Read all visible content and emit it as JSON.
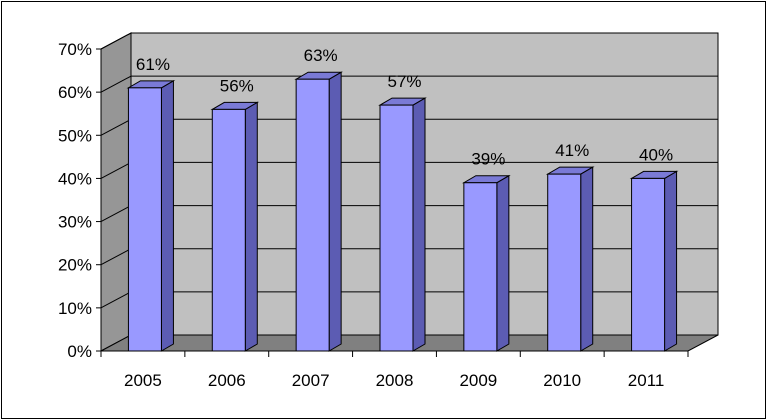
{
  "chart_data": {
    "type": "bar",
    "title": "",
    "xlabel": "",
    "ylabel": "",
    "categories": [
      "2005",
      "2006",
      "2007",
      "2008",
      "2009",
      "2010",
      "2011"
    ],
    "values": [
      61,
      56,
      63,
      57,
      39,
      41,
      40
    ],
    "data_labels": [
      "61%",
      "56%",
      "63%",
      "57%",
      "39%",
      "41%",
      "40%"
    ],
    "ylim": [
      0,
      70
    ],
    "yticks": [
      0,
      10,
      20,
      30,
      40,
      50,
      60,
      70
    ],
    "ytick_labels": [
      "0%",
      "10%",
      "20%",
      "30%",
      "40%",
      "50%",
      "60%",
      "70%"
    ],
    "grid": true,
    "legend": "none",
    "style": "3d-column",
    "colors": {
      "bar_front": "#9999ff",
      "bar_side": "#5c5cb3",
      "bar_top": "#7a7ad6",
      "back_wall": "#c0c0c0",
      "side_wall": "#969696",
      "floor": "#808080",
      "gridline": "#000000"
    }
  }
}
